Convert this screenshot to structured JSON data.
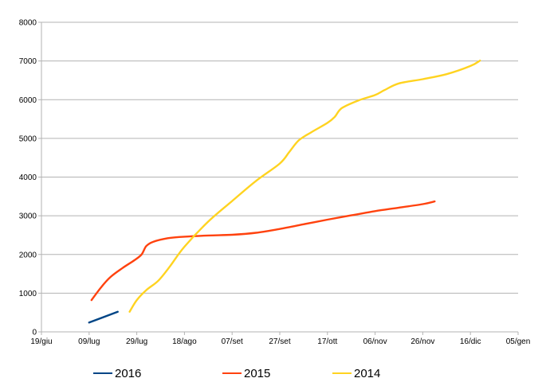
{
  "chart_data": {
    "type": "line",
    "title": "",
    "xlabel": "",
    "ylabel": "",
    "x_axis": {
      "type": "date",
      "range": [
        "2016-06-19",
        "2017-01-05"
      ],
      "ticks": [
        {
          "date": "2016-06-19",
          "label": "19/giu"
        },
        {
          "date": "2016-07-09",
          "label": "09/lug"
        },
        {
          "date": "2016-07-29",
          "label": "29/lug"
        },
        {
          "date": "2016-08-18",
          "label": "18/ago"
        },
        {
          "date": "2016-09-07",
          "label": "07/set"
        },
        {
          "date": "2016-09-27",
          "label": "27/set"
        },
        {
          "date": "2016-10-17",
          "label": "17/ott"
        },
        {
          "date": "2016-11-06",
          "label": "06/nov"
        },
        {
          "date": "2016-11-26",
          "label": "26/nov"
        },
        {
          "date": "2016-12-16",
          "label": "16/dic"
        },
        {
          "date": "2017-01-05",
          "label": "05/gen"
        }
      ]
    },
    "y_axis": {
      "range": [
        0,
        8000
      ],
      "ticks": [
        0,
        1000,
        2000,
        3000,
        4000,
        5000,
        6000,
        7000,
        8000
      ]
    },
    "grid": {
      "horizontal": true,
      "vertical": false
    },
    "legend": {
      "position": "bottom"
    },
    "series": [
      {
        "name": "2016",
        "color": "#004586",
        "points": [
          {
            "x": "2016-07-09",
            "y": 240
          },
          {
            "x": "2016-07-21",
            "y": 520
          }
        ]
      },
      {
        "name": "2015",
        "color": "#ff420e",
        "points": [
          {
            "x": "2016-07-10",
            "y": 820
          },
          {
            "x": "2016-07-14",
            "y": 1150
          },
          {
            "x": "2016-07-18",
            "y": 1420
          },
          {
            "x": "2016-07-23",
            "y": 1650
          },
          {
            "x": "2016-07-28",
            "y": 1850
          },
          {
            "x": "2016-07-31",
            "y": 2000
          },
          {
            "x": "2016-08-02",
            "y": 2220
          },
          {
            "x": "2016-08-05",
            "y": 2330
          },
          {
            "x": "2016-08-11",
            "y": 2420
          },
          {
            "x": "2016-08-18",
            "y": 2460
          },
          {
            "x": "2016-08-28",
            "y": 2490
          },
          {
            "x": "2016-09-07",
            "y": 2510
          },
          {
            "x": "2016-09-17",
            "y": 2560
          },
          {
            "x": "2016-09-27",
            "y": 2660
          },
          {
            "x": "2016-10-07",
            "y": 2780
          },
          {
            "x": "2016-10-17",
            "y": 2900
          },
          {
            "x": "2016-10-27",
            "y": 3010
          },
          {
            "x": "2016-11-06",
            "y": 3120
          },
          {
            "x": "2016-11-16",
            "y": 3210
          },
          {
            "x": "2016-11-26",
            "y": 3300
          },
          {
            "x": "2016-12-01",
            "y": 3370
          }
        ]
      },
      {
        "name": "2014",
        "color": "#ffd320",
        "points": [
          {
            "x": "2016-07-26",
            "y": 520
          },
          {
            "x": "2016-07-29",
            "y": 820
          },
          {
            "x": "2016-08-02",
            "y": 1080
          },
          {
            "x": "2016-08-07",
            "y": 1320
          },
          {
            "x": "2016-08-12",
            "y": 1700
          },
          {
            "x": "2016-08-18",
            "y": 2200
          },
          {
            "x": "2016-08-28",
            "y": 2850
          },
          {
            "x": "2016-09-07",
            "y": 3380
          },
          {
            "x": "2016-09-17",
            "y": 3900
          },
          {
            "x": "2016-09-27",
            "y": 4350
          },
          {
            "x": "2016-10-01",
            "y": 4650
          },
          {
            "x": "2016-10-05",
            "y": 4950
          },
          {
            "x": "2016-10-10",
            "y": 5150
          },
          {
            "x": "2016-10-17",
            "y": 5400
          },
          {
            "x": "2016-10-20",
            "y": 5550
          },
          {
            "x": "2016-10-23",
            "y": 5780
          },
          {
            "x": "2016-10-30",
            "y": 5980
          },
          {
            "x": "2016-11-06",
            "y": 6120
          },
          {
            "x": "2016-11-10",
            "y": 6250
          },
          {
            "x": "2016-11-16",
            "y": 6420
          },
          {
            "x": "2016-11-26",
            "y": 6530
          },
          {
            "x": "2016-12-06",
            "y": 6660
          },
          {
            "x": "2016-12-16",
            "y": 6870
          },
          {
            "x": "2016-12-20",
            "y": 7010
          }
        ]
      }
    ]
  }
}
